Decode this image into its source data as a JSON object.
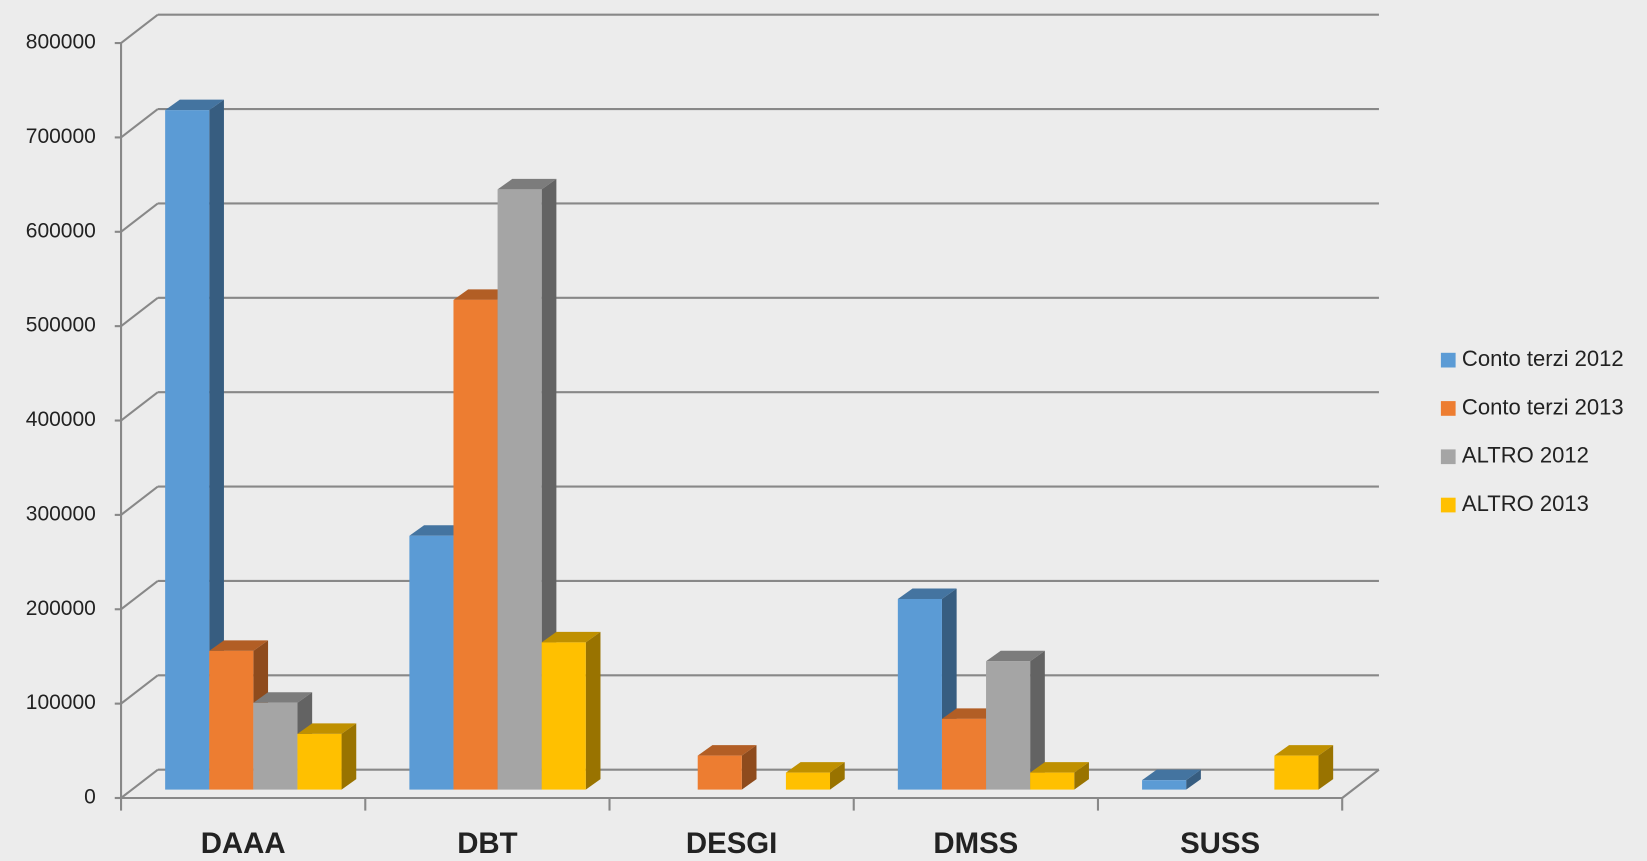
{
  "chart_data": {
    "type": "bar3d",
    "categories": [
      "DAAA",
      "DBT",
      "DESGI",
      "DMSS",
      "SUSS"
    ],
    "series": [
      {
        "name": "Conto terzi 2012",
        "color": "#5b9bd5",
        "values": [
          720000,
          269000,
          0,
          202000,
          10000
        ]
      },
      {
        "name": "Conto terzi 2013",
        "color": "#ed7d31",
        "values": [
          147000,
          519000,
          36000,
          75000,
          0
        ]
      },
      {
        "name": "ALTRO 2012",
        "color": "#a5a5a5",
        "values": [
          92000,
          636000,
          0,
          136000,
          0
        ]
      },
      {
        "name": "ALTRO 2013",
        "color": "#ffc000",
        "values": [
          59000,
          156000,
          18000,
          18000,
          36000
        ]
      }
    ],
    "ylim": [
      0,
      800000
    ],
    "yticks": [
      0,
      100000,
      200000,
      300000,
      400000,
      500000,
      600000,
      700000,
      800000
    ],
    "grid": true,
    "legend": "right"
  }
}
